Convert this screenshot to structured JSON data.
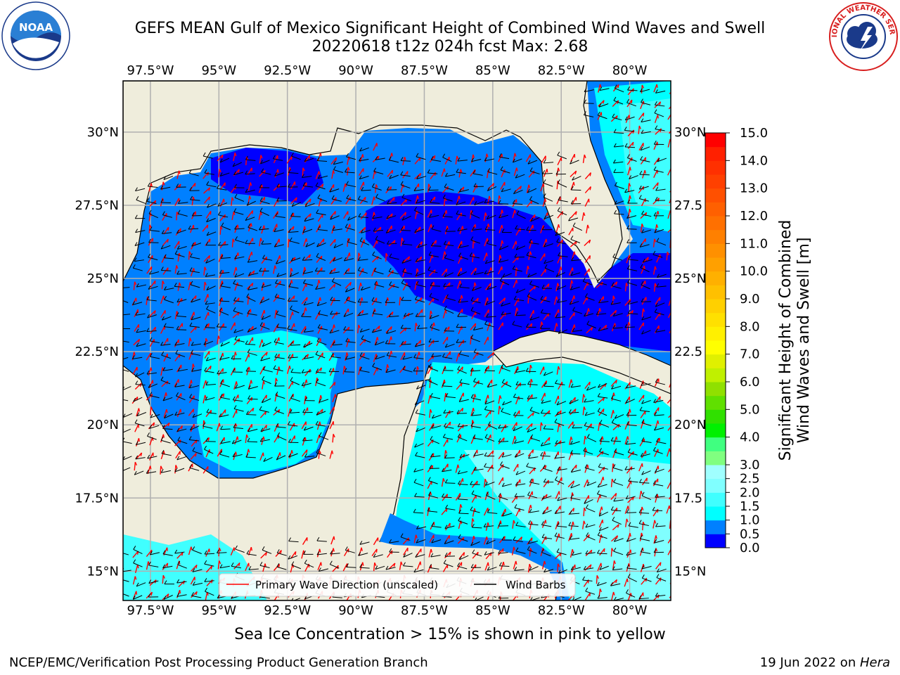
{
  "header": {
    "title_line1": "GEFS MEAN Gulf of Mexico Significant Height of Combined Wind Waves and Swell",
    "title_line2": "20220618 t12z 024h fcst   Max: 2.68"
  },
  "logos": {
    "left": {
      "label": "NOAA",
      "ring_text": "NATIONAL OCEANIC AND ATMOSPHERIC ADMINISTRATION · U.S. DEPARTMENT OF COMMERCE"
    },
    "right": {
      "ring_text": "NATIONAL WEATHER SERVICE"
    }
  },
  "chart_data": {
    "type": "heatmap",
    "title": "GEFS MEAN Gulf of Mexico Significant Height of Combined Wind Waves and Swell",
    "subtitle": "20220618 t12z 024h fcst   Max: 2.68",
    "xlim": [
      -98.5,
      -78.5
    ],
    "ylim": [
      14.0,
      31.75
    ],
    "x_ticks": [
      {
        "value": -97.5,
        "label": "97.5°W"
      },
      {
        "value": -95.0,
        "label": "95°W"
      },
      {
        "value": -92.5,
        "label": "92.5°W"
      },
      {
        "value": -90.0,
        "label": "90°W"
      },
      {
        "value": -87.5,
        "label": "87.5°W"
      },
      {
        "value": -85.0,
        "label": "85°W"
      },
      {
        "value": -82.5,
        "label": "82.5°W"
      },
      {
        "value": -80.0,
        "label": "80°W"
      }
    ],
    "y_ticks": [
      {
        "value": 30.0,
        "label": "30°N"
      },
      {
        "value": 27.5,
        "label": "27.5°N"
      },
      {
        "value": 25.0,
        "label": "25°N"
      },
      {
        "value": 22.5,
        "label": "22.5°N"
      },
      {
        "value": 20.0,
        "label": "20°N"
      },
      {
        "value": 17.5,
        "label": "17.5°N"
      },
      {
        "value": 15.0,
        "label": "15°N"
      }
    ],
    "right_y_tick_labels": [
      "30°N",
      "27.5",
      "25°N",
      "22.5",
      "20°N",
      "17.5",
      "15°N"
    ],
    "grid": true,
    "max_value": 2.68,
    "units": "m",
    "colorbar": {
      "label_line1": "Significant Height of Combined",
      "label_line2": "Wind Waves and Swell [m]",
      "range": [
        0.0,
        15.0
      ],
      "levels": [
        0.0,
        0.5,
        1.0,
        1.5,
        2.0,
        2.5,
        3.0,
        3.5,
        4.0,
        4.5,
        5.0,
        5.5,
        6.0,
        6.5,
        7.0,
        7.5,
        8.0,
        8.5,
        9.0,
        9.5,
        10.0,
        10.5,
        11.0,
        11.5,
        12.0,
        12.5,
        13.0,
        13.5,
        14.0,
        14.5,
        15.0
      ],
      "colors": [
        "#0000ff",
        "#0080ff",
        "#00ffff",
        "#40ffff",
        "#80ffff",
        "#a0ffff",
        "#80ff80",
        "#40ff80",
        "#00f000",
        "#30e000",
        "#60e000",
        "#90e000",
        "#c0f000",
        "#e0f000",
        "#ffff00",
        "#fff000",
        "#ffe000",
        "#ffd000",
        "#ffc000",
        "#ffb000",
        "#ffa000",
        "#ff9000",
        "#ff8000",
        "#ff7000",
        "#ff6000",
        "#ff5000",
        "#ff4000",
        "#ff3000",
        "#ff2000",
        "#ff0000"
      ],
      "tick_labels": [
        "0.0",
        "0.5",
        "1.0",
        "1.5",
        "2.0",
        "2.5",
        "3.0",
        "4.0",
        "5.0",
        "6.0",
        "7.0",
        "8.0",
        "9.0",
        "10.0",
        "11.0",
        "12.0",
        "13.0",
        "14.0",
        "15.0"
      ]
    },
    "legend": {
      "placement": "bottom-center",
      "entries": [
        {
          "name": "Primary Wave Direction (unscaled)",
          "color": "#ff0000"
        },
        {
          "name": "Wind Barbs",
          "color": "#000000"
        }
      ]
    },
    "colors": {
      "land": "#efeddc",
      "coast": "#000000",
      "grid": "#b0b0b0"
    },
    "regions": [
      {
        "name": "northwest-gulf",
        "value_range": [
          0.0,
          0.5
        ]
      },
      {
        "name": "western-gulf",
        "value_range": [
          0.5,
          1.0
        ]
      },
      {
        "name": "eastern-central-gulf",
        "value_range": [
          0.0,
          0.5
        ]
      },
      {
        "name": "southwest-gulf-center",
        "value_range": [
          1.0,
          1.5
        ]
      },
      {
        "name": "caribbean",
        "value_range": [
          1.5,
          2.5
        ]
      },
      {
        "name": "atlantic-east-florida",
        "value_range": [
          1.0,
          1.5
        ]
      }
    ]
  },
  "notes": {
    "sea_ice": "Sea Ice Concentration > 15% is shown in pink to yellow"
  },
  "footer": {
    "left": "NCEP/EMC/Verification Post Processing Product Generation Branch",
    "right_date": "19 Jun 2022 on ",
    "right_machine": "Hera"
  }
}
